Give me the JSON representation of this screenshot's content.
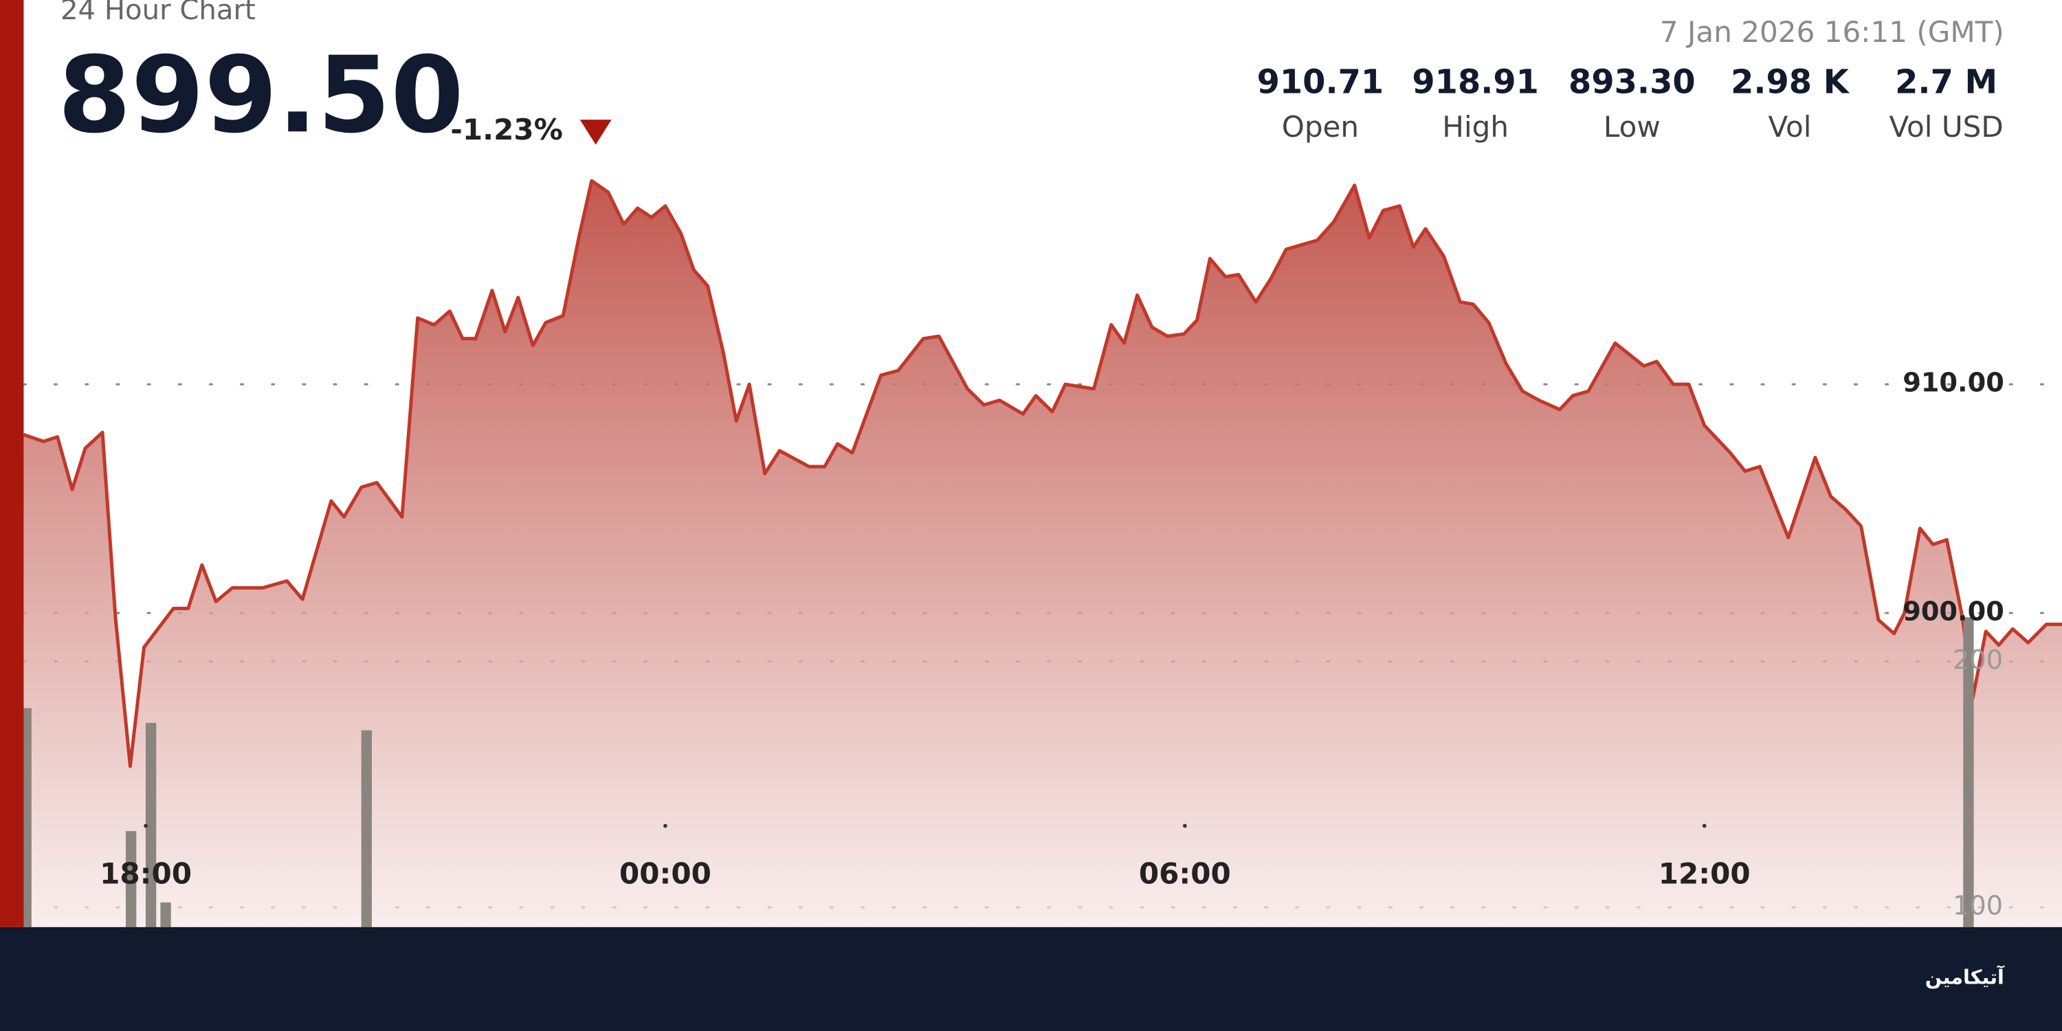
{
  "header": {
    "label": "24 Hour Chart",
    "price": "899.50",
    "change": "-1.23%",
    "timestamp": "7 Jan 2026 16:11 (GMT)"
  },
  "stats": [
    {
      "value": "910.71",
      "label": "Open"
    },
    {
      "value": "918.91",
      "label": "High"
    },
    {
      "value": "893.30",
      "label": "Low"
    },
    {
      "value": "2.98 K",
      "label": "Vol"
    },
    {
      "value": "2.7 M",
      "label": "Vol USD"
    }
  ],
  "brand": "آتیکامین",
  "chart_data": {
    "type": "line",
    "xlim": [
      16.59,
      40.13
    ],
    "xticks": [
      {
        "value": 18,
        "label": "18:00"
      },
      {
        "value": 24,
        "label": "00:00"
      },
      {
        "value": 30,
        "label": "06:00"
      },
      {
        "value": 36,
        "label": "12:00"
      }
    ],
    "ylim": [
      886,
      926
    ],
    "yticks": [
      {
        "value": 900,
        "label": "900.00"
      },
      {
        "value": 910,
        "label": "910.00"
      }
    ],
    "y2lim": [
      89.5,
      461.5
    ],
    "y2ticks": [
      100,
      200
    ],
    "grid": true,
    "series": [
      {
        "color": "#c0392b",
        "x": [
          16.59,
          16.82,
          16.98,
          17.15,
          17.3,
          17.5,
          17.65,
          17.82,
          17.98,
          18.32,
          18.49,
          18.65,
          18.81,
          19.0,
          19.35,
          19.63,
          19.81,
          20.14,
          20.29,
          20.49,
          20.67,
          20.96,
          21.14,
          21.33,
          21.51,
          21.66,
          21.81,
          22.0,
          22.15,
          22.3,
          22.47,
          22.62,
          22.82,
          23.0,
          23.15,
          23.34,
          23.52,
          23.68,
          23.84,
          24.0,
          24.18,
          24.33,
          24.49,
          24.67,
          24.82,
          24.97,
          25.15,
          25.32,
          25.66,
          25.84,
          25.99,
          26.16,
          26.49,
          26.69,
          26.98,
          27.16,
          27.49,
          27.68,
          27.86,
          28.13,
          28.28,
          28.47,
          28.62,
          28.95,
          29.15,
          29.3,
          29.45,
          29.62,
          29.8,
          29.99,
          30.14,
          30.29,
          30.47,
          30.62,
          30.82,
          30.99,
          31.17,
          31.53,
          31.72,
          31.96,
          32.13,
          32.29,
          32.48,
          32.64,
          32.78,
          32.99,
          33.18,
          33.33,
          33.51,
          33.71,
          33.9,
          34.09,
          34.33,
          34.48,
          34.66,
          34.97,
          35.3,
          35.45,
          35.64,
          35.82,
          36.0,
          36.3,
          36.47,
          36.64,
          36.97,
          37.28,
          37.46,
          37.64,
          37.81,
          38.01,
          38.19,
          38.31,
          38.49,
          38.64,
          38.8,
          38.98,
          39.1,
          39.25,
          39.4,
          39.56,
          39.74,
          39.95,
          40.13
        ],
        "values": [
          907.8,
          907.5,
          907.7,
          905.4,
          907.2,
          907.9,
          899.8,
          893.3,
          898.5,
          900.2,
          900.2,
          902.1,
          900.5,
          901.1,
          901.1,
          901.4,
          900.6,
          904.9,
          904.2,
          905.5,
          905.7,
          904.2,
          912.9,
          912.6,
          913.2,
          912.0,
          912.0,
          914.1,
          912.3,
          913.8,
          911.7,
          912.7,
          913.0,
          916.4,
          918.9,
          918.4,
          917.0,
          917.7,
          917.3,
          917.8,
          916.6,
          915.0,
          914.3,
          911.4,
          908.4,
          910.0,
          906.1,
          907.1,
          906.4,
          906.4,
          907.4,
          907.0,
          910.4,
          910.6,
          912.0,
          912.1,
          909.8,
          909.1,
          909.3,
          908.7,
          909.5,
          908.8,
          910.0,
          909.8,
          912.6,
          911.8,
          913.9,
          912.5,
          912.1,
          912.2,
          912.8,
          915.5,
          914.7,
          914.8,
          913.6,
          914.6,
          915.9,
          916.3,
          917.1,
          918.7,
          916.4,
          917.6,
          917.8,
          916.0,
          916.8,
          915.6,
          913.6,
          913.5,
          912.7,
          910.9,
          909.7,
          909.3,
          908.9,
          909.5,
          909.7,
          911.8,
          910.8,
          911.0,
          910.0,
          910.0,
          908.2,
          907.0,
          906.2,
          906.4,
          903.3,
          906.8,
          905.1,
          904.5,
          903.8,
          899.7,
          899.1,
          900.0,
          903.7,
          903.0,
          903.2,
          899.8,
          896.3,
          899.2,
          898.6,
          899.3,
          898.7,
          899.5,
          899.5
        ]
      },
      {
        "type": "bar",
        "axis": "y2",
        "color": "#8a857e",
        "x": [
          16.62,
          17.83,
          18.06,
          18.23,
          20.55,
          39.05
        ],
        "values": [
          181,
          131,
          175,
          102,
          172,
          218
        ]
      }
    ]
  }
}
